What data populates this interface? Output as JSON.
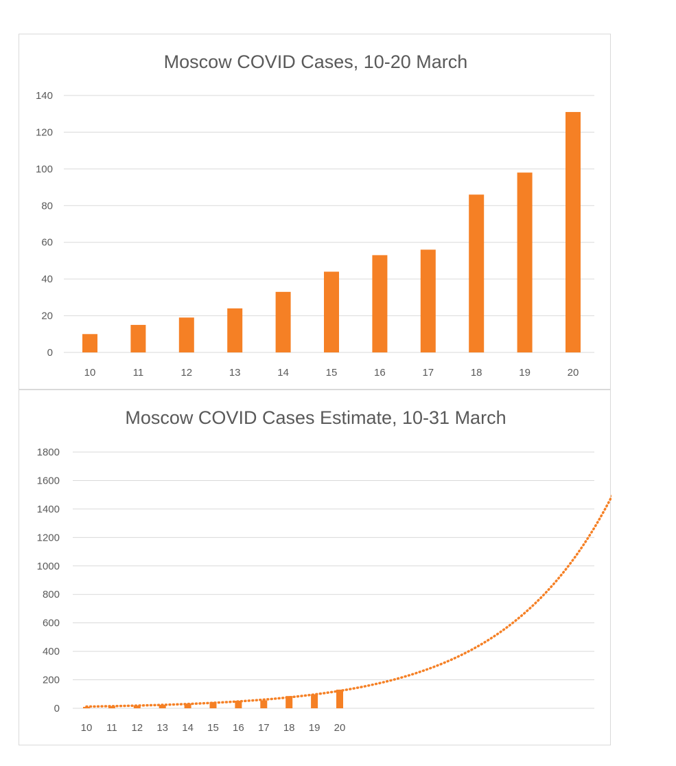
{
  "chart_data": [
    {
      "type": "bar",
      "title": "Moscow COVID Cases, 10-20 March",
      "xlabel": "",
      "ylabel": "",
      "categories": [
        "10",
        "11",
        "12",
        "13",
        "14",
        "15",
        "16",
        "17",
        "18",
        "19",
        "20"
      ],
      "series": [
        {
          "values": [
            10,
            15,
            19,
            24,
            33,
            44,
            53,
            56,
            86,
            98,
            131
          ]
        }
      ],
      "ylim": [
        0,
        140
      ],
      "yticks": [
        0,
        20,
        40,
        60,
        80,
        100,
        120,
        140
      ],
      "grid": true,
      "legend": "none",
      "color": "#f58025"
    },
    {
      "type": "bar",
      "title": "Moscow COVID Cases Estimate, 10-31 March",
      "xlabel": "",
      "ylabel": "",
      "categories": [
        "10",
        "11",
        "12",
        "13",
        "14",
        "15",
        "16",
        "17",
        "18",
        "19",
        "20"
      ],
      "series": [
        {
          "values": [
            10,
            15,
            19,
            24,
            33,
            44,
            53,
            56,
            86,
            98,
            131
          ]
        }
      ],
      "trendline": {
        "type": "exponential",
        "style": "dotted",
        "x_start": 10,
        "x_end": 31,
        "y_start": 12,
        "y_end": 1580
      },
      "ylim": [
        0,
        1800
      ],
      "yticks": [
        0,
        200,
        400,
        600,
        800,
        1000,
        1200,
        1400,
        1600,
        1800
      ],
      "grid": true,
      "legend": "none",
      "color": "#f58025"
    }
  ]
}
